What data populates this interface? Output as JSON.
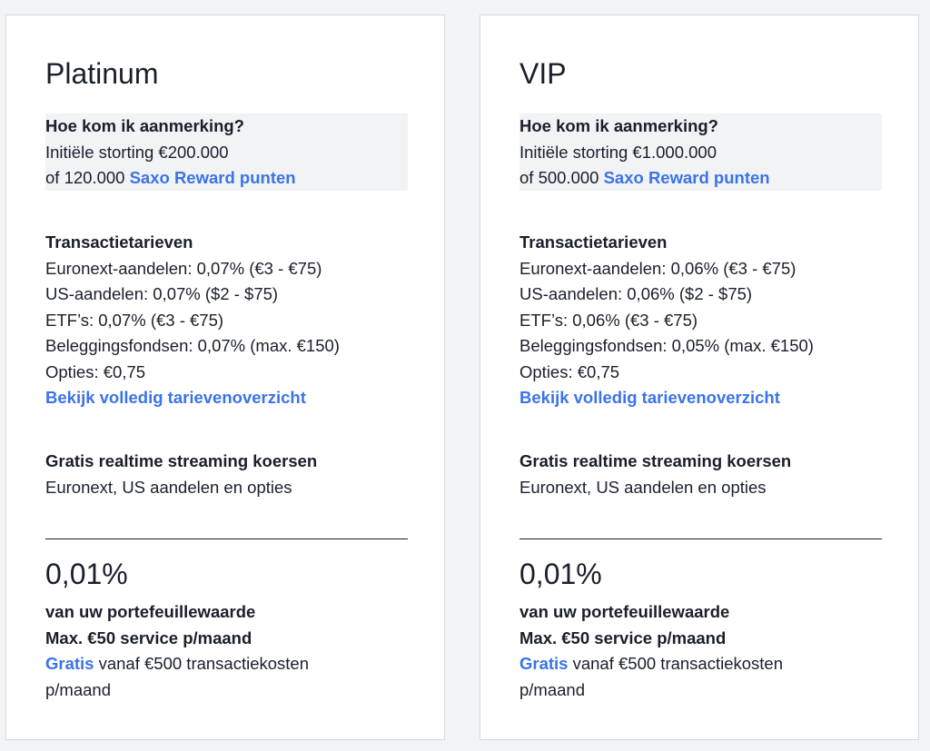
{
  "colors": {
    "link": "#3b73e8",
    "text": "#1a1f2b",
    "background": "#f2f3f5"
  },
  "cards": [
    {
      "title": "Platinum",
      "eligibility": {
        "heading": "Hoe kom ik aanmerking?",
        "deposit": "Initiële storting €200.000",
        "points_prefix": "of 120.000",
        "points_link": "Saxo Reward punten"
      },
      "fees": {
        "heading": "Transactietarieven",
        "items": [
          "Euronext-aandelen: 0,07% (€3 - €75)",
          "US-aandelen: 0,07% ($2 - $75)",
          "ETF’s: 0,07% (€3 - €75)",
          "Beleggingsfondsen: 0,07% (max. €150)",
          "Opties: €0,75"
        ],
        "link": "Bekijk volledig tarievenoverzicht"
      },
      "streaming": {
        "heading": "Gratis realtime streaming koersen",
        "text": "Euronext, US aandelen en opties"
      },
      "service": {
        "rate": "0,01%",
        "line1": "van uw portefeuillewaarde",
        "line2": "Max. €50 service p/maand",
        "free_link": "Gratis",
        "free_text": "vanaf €500 transactiekosten",
        "free_text2": "p/maand"
      }
    },
    {
      "title": "VIP",
      "eligibility": {
        "heading": "Hoe kom ik aanmerking?",
        "deposit": "Initiële storting €1.000.000",
        "points_prefix": "of 500.000",
        "points_link": "Saxo Reward punten"
      },
      "fees": {
        "heading": "Transactietarieven",
        "items": [
          "Euronext-aandelen: 0,06% (€3 - €75)",
          "US-aandelen: 0,06% ($2 - $75)",
          "ETF’s: 0,06% (€3 - €75)",
          "Beleggingsfondsen: 0,05% (max. €150)",
          "Opties: €0,75"
        ],
        "link": "Bekijk volledig tarievenoverzicht"
      },
      "streaming": {
        "heading": "Gratis realtime streaming koersen",
        "text": "Euronext, US aandelen en opties"
      },
      "service": {
        "rate": "0,01%",
        "line1": "van uw portefeuillewaarde",
        "line2": "Max. €50 service p/maand",
        "free_link": "Gratis",
        "free_text": "vanaf €500 transactiekosten",
        "free_text2": "p/maand"
      }
    }
  ]
}
